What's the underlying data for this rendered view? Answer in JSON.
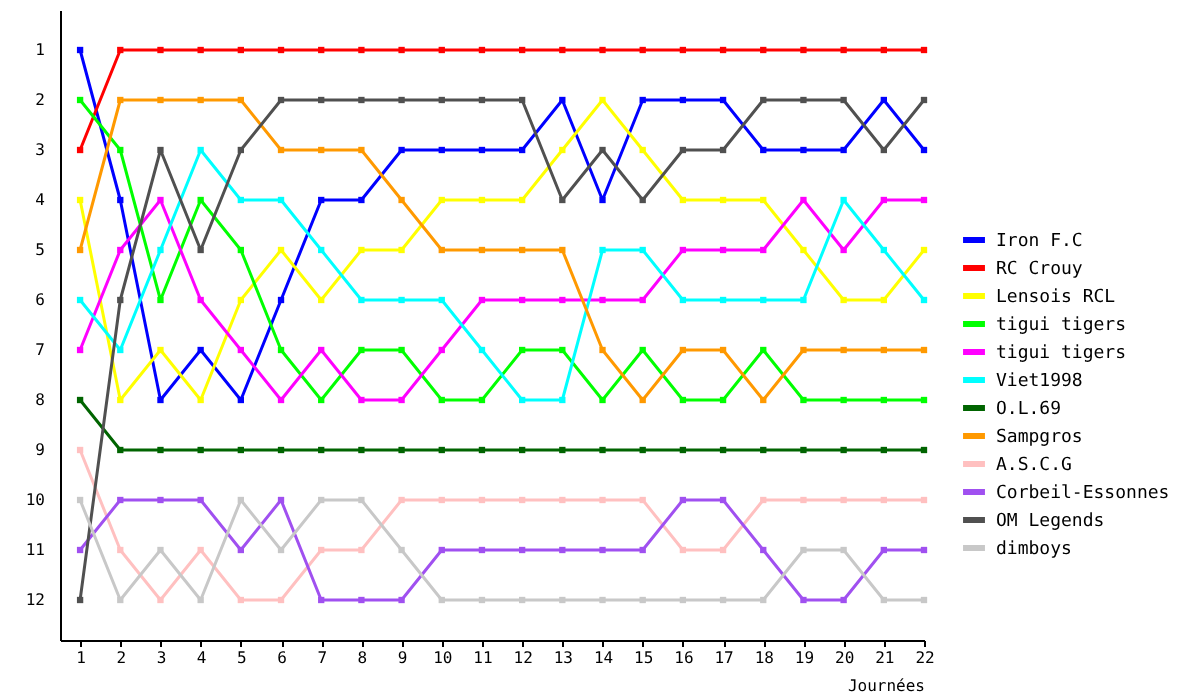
{
  "chart_data": {
    "type": "line",
    "xlabel": "Journées",
    "x": [
      1,
      2,
      3,
      4,
      5,
      6,
      7,
      8,
      9,
      10,
      11,
      12,
      13,
      14,
      15,
      16,
      17,
      18,
      19,
      20,
      21,
      22
    ],
    "xlim": [
      0.5,
      22
    ],
    "xticks": [
      1,
      2,
      3,
      4,
      5,
      6,
      7,
      8,
      9,
      10,
      11,
      12,
      13,
      14,
      15,
      16,
      17,
      18,
      19,
      20,
      21,
      22
    ],
    "ylim": [
      12.8,
      0.2
    ],
    "yticks": [
      1,
      2,
      3,
      4,
      5,
      6,
      7,
      8,
      9,
      10,
      11,
      12
    ],
    "grid": false,
    "legend": "right",
    "marker": "square",
    "line_style": "solid",
    "series": [
      {
        "name": "Iron F.C",
        "color": "#0000ff",
        "values": [
          1,
          4,
          8,
          7,
          8,
          6,
          4,
          4,
          3,
          3,
          3,
          3,
          2,
          4,
          2,
          2,
          2,
          3,
          3,
          3,
          2,
          3
        ]
      },
      {
        "name": "RC Crouy",
        "color": "#ff0000",
        "values": [
          3,
          1,
          1,
          1,
          1,
          1,
          1,
          1,
          1,
          1,
          1,
          1,
          1,
          1,
          1,
          1,
          1,
          1,
          1,
          1,
          1,
          1
        ]
      },
      {
        "name": "Lensois RCL",
        "color": "#ffff00",
        "values": [
          4,
          8,
          7,
          8,
          6,
          5,
          6,
          5,
          5,
          4,
          4,
          4,
          3,
          2,
          3,
          4,
          4,
          4,
          5,
          6,
          6,
          5
        ]
      },
      {
        "name": "tigui tigers",
        "color": "#00ff00",
        "values": [
          2,
          3,
          6,
          4,
          5,
          7,
          8,
          7,
          7,
          8,
          8,
          7,
          7,
          8,
          7,
          8,
          8,
          7,
          8,
          8,
          8,
          8
        ]
      },
      {
        "name": "tigui tigers",
        "color": "#ff00ff",
        "values": [
          7,
          5,
          4,
          6,
          7,
          8,
          7,
          8,
          8,
          7,
          6,
          6,
          6,
          6,
          6,
          5,
          5,
          5,
          4,
          5,
          4,
          4
        ]
      },
      {
        "name": "Viet1998",
        "color": "#00ffff",
        "values": [
          6,
          7,
          5,
          3,
          4,
          4,
          5,
          6,
          6,
          6,
          7,
          8,
          8,
          5,
          5,
          6,
          6,
          6,
          6,
          4,
          5,
          6
        ]
      },
      {
        "name": "O.L.69",
        "color": "#006400",
        "values": [
          8,
          9,
          9,
          9,
          9,
          9,
          9,
          9,
          9,
          9,
          9,
          9,
          9,
          9,
          9,
          9,
          9,
          9,
          9,
          9,
          9,
          9
        ]
      },
      {
        "name": "Sampgros",
        "color": "#ff9900",
        "values": [
          5,
          2,
          2,
          2,
          2,
          3,
          3,
          3,
          4,
          5,
          5,
          5,
          5,
          7,
          8,
          7,
          7,
          8,
          7,
          7,
          7,
          7
        ]
      },
      {
        "name": "A.S.C.G",
        "color": "#ffc0c0",
        "values": [
          9,
          11,
          12,
          11,
          12,
          12,
          11,
          11,
          10,
          10,
          10,
          10,
          10,
          10,
          10,
          11,
          11,
          10,
          10,
          10,
          10,
          10
        ]
      },
      {
        "name": "Corbeil-Essonnes",
        "color": "#a050f0",
        "values": [
          11,
          10,
          10,
          10,
          11,
          10,
          12,
          12,
          12,
          11,
          11,
          11,
          11,
          11,
          11,
          10,
          10,
          11,
          12,
          12,
          11,
          11
        ]
      },
      {
        "name": "OM Legends",
        "color": "#505050",
        "values": [
          12,
          6,
          3,
          5,
          3,
          2,
          2,
          2,
          2,
          2,
          2,
          2,
          4,
          3,
          4,
          3,
          3,
          2,
          2,
          2,
          3,
          2
        ]
      },
      {
        "name": "dimboys",
        "color": "#c8c8c8",
        "values": [
          10,
          12,
          11,
          12,
          10,
          11,
          10,
          10,
          11,
          12,
          12,
          12,
          12,
          12,
          12,
          12,
          12,
          12,
          11,
          11,
          12,
          12
        ]
      }
    ]
  }
}
